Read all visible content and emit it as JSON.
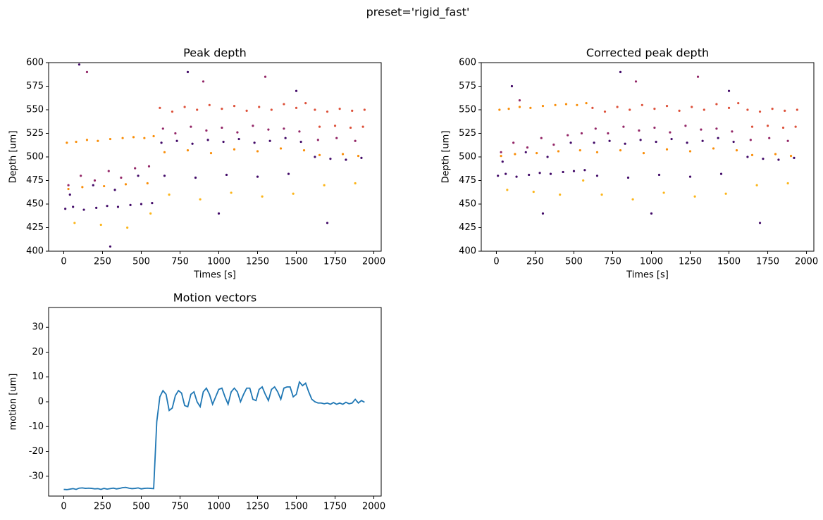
{
  "title": "preset='rigid_fast'",
  "chart_data": [
    {
      "type": "scatter",
      "title": "Peak depth",
      "xlabel": "Times [s]",
      "ylabel": "Depth [um]",
      "xlim": [
        -97.5,
        2047.5
      ],
      "xticks": [
        0,
        250,
        500,
        750,
        1000,
        1250,
        1500,
        1750,
        2000
      ],
      "ylim": [
        400,
        600
      ],
      "yticks": [
        400,
        425,
        450,
        475,
        500,
        525,
        550,
        575,
        600
      ],
      "series": [
        {
          "color": "#420a68",
          "x": [
            10,
            60,
            130,
            210,
            280,
            350,
            430,
            500,
            570,
            40,
            190,
            330,
            480,
            630,
            730,
            830,
            930,
            1030,
            1130,
            1230,
            1330,
            1430,
            1530,
            650,
            850,
            1050,
            1250,
            1450,
            1620,
            1720,
            1820,
            1920,
            300,
            1000,
            1700,
            100,
            800,
            1500
          ],
          "values": [
            445,
            447,
            444,
            446,
            448,
            447,
            449,
            450,
            451,
            460,
            470,
            465,
            480,
            515,
            517,
            514,
            518,
            516,
            519,
            515,
            517,
            520,
            516,
            480,
            478,
            481,
            479,
            482,
            500,
            498,
            497,
            499,
            405,
            440,
            430,
            598,
            590,
            570
          ]
        },
        {
          "color": "#932667",
          "x": [
            30,
            110,
            200,
            290,
            370,
            460,
            550,
            640,
            720,
            820,
            920,
            1020,
            1120,
            1220,
            1320,
            1420,
            1520,
            1640,
            1760,
            1880,
            150,
            900,
            1300
          ],
          "values": [
            470,
            480,
            475,
            485,
            478,
            488,
            490,
            530,
            525,
            532,
            528,
            531,
            526,
            533,
            529,
            530,
            527,
            518,
            520,
            517,
            590,
            580,
            585
          ]
        },
        {
          "color": "#dd513a",
          "x": [
            620,
            700,
            780,
            860,
            940,
            1020,
            1100,
            1180,
            1260,
            1340,
            1420,
            1500,
            1560,
            1620,
            1700,
            1780,
            1860,
            1940,
            1650,
            1750,
            1850,
            1930
          ],
          "values": [
            552,
            548,
            553,
            550,
            555,
            551,
            554,
            549,
            553,
            550,
            556,
            552,
            557,
            550,
            548,
            551,
            549,
            550,
            532,
            533,
            531,
            532
          ]
        },
        {
          "color": "#f98e09",
          "x": [
            20,
            80,
            150,
            220,
            300,
            380,
            450,
            520,
            580,
            30,
            120,
            260,
            400,
            540,
            650,
            800,
            950,
            1100,
            1250,
            1400,
            1550,
            1650,
            1800,
            1900
          ],
          "values": [
            515,
            516,
            518,
            517,
            519,
            520,
            521,
            520,
            522,
            466,
            468,
            469,
            471,
            472,
            505,
            507,
            504,
            508,
            506,
            509,
            507,
            502,
            503,
            501
          ]
        },
        {
          "color": "#fcb519",
          "x": [
            70,
            240,
            410,
            560,
            680,
            880,
            1080,
            1280,
            1480,
            1680,
            1880
          ],
          "values": [
            430,
            428,
            425,
            440,
            460,
            455,
            462,
            458,
            461,
            470,
            472
          ]
        }
      ]
    },
    {
      "type": "scatter",
      "title": "Corrected peak depth",
      "xlabel": "Times [s]",
      "ylabel": "Depth [um]",
      "xlim": [
        -97.5,
        2047.5
      ],
      "xticks": [
        0,
        250,
        500,
        750,
        1000,
        1250,
        1500,
        1750,
        2000
      ],
      "ylim": [
        400,
        600
      ],
      "yticks": [
        400,
        425,
        450,
        475,
        500,
        525,
        550,
        575,
        600
      ],
      "series": [
        {
          "color": "#420a68",
          "x": [
            10,
            60,
            130,
            210,
            280,
            350,
            430,
            500,
            570,
            40,
            190,
            330,
            480,
            630,
            730,
            830,
            930,
            1030,
            1130,
            1230,
            1330,
            1430,
            1530,
            650,
            850,
            1050,
            1250,
            1450,
            1620,
            1720,
            1820,
            1920,
            300,
            1000,
            1700,
            100,
            800,
            1500
          ],
          "values": [
            480,
            482,
            479,
            481,
            483,
            482,
            484,
            485,
            486,
            495,
            505,
            500,
            515,
            515,
            517,
            514,
            518,
            516,
            519,
            515,
            517,
            520,
            516,
            480,
            478,
            481,
            479,
            482,
            500,
            498,
            497,
            499,
            440,
            440,
            430,
            575,
            590,
            570
          ]
        },
        {
          "color": "#932667",
          "x": [
            30,
            110,
            200,
            290,
            370,
            460,
            550,
            640,
            720,
            820,
            920,
            1020,
            1120,
            1220,
            1320,
            1420,
            1520,
            1640,
            1760,
            1880,
            150,
            900,
            1300
          ],
          "values": [
            505,
            515,
            510,
            520,
            513,
            523,
            525,
            530,
            525,
            532,
            528,
            531,
            526,
            533,
            529,
            530,
            527,
            518,
            520,
            517,
            560,
            580,
            585
          ]
        },
        {
          "color": "#dd513a",
          "x": [
            620,
            700,
            780,
            860,
            940,
            1020,
            1100,
            1180,
            1260,
            1340,
            1420,
            1500,
            1560,
            1620,
            1700,
            1780,
            1860,
            1940,
            1650,
            1750,
            1850,
            1930
          ],
          "values": [
            552,
            548,
            553,
            550,
            555,
            551,
            554,
            549,
            553,
            550,
            556,
            552,
            557,
            550,
            548,
            551,
            549,
            550,
            532,
            533,
            531,
            532
          ]
        },
        {
          "color": "#f98e09",
          "x": [
            20,
            80,
            150,
            220,
            300,
            380,
            450,
            520,
            580,
            30,
            120,
            260,
            400,
            540,
            650,
            800,
            950,
            1100,
            1250,
            1400,
            1550,
            1650,
            1800,
            1900
          ],
          "values": [
            550,
            551,
            553,
            552,
            554,
            555,
            556,
            555,
            557,
            501,
            503,
            504,
            506,
            507,
            505,
            507,
            504,
            508,
            506,
            509,
            507,
            502,
            503,
            501
          ]
        },
        {
          "color": "#fcb519",
          "x": [
            70,
            240,
            410,
            560,
            680,
            880,
            1080,
            1280,
            1480,
            1680,
            1880
          ],
          "values": [
            465,
            463,
            460,
            475,
            460,
            455,
            462,
            458,
            461,
            470,
            472
          ]
        }
      ]
    },
    {
      "type": "line",
      "title": "Motion vectors",
      "ylabel": "motion [um]",
      "color": "#1f77b4",
      "xlim": [
        -97.5,
        2047.5
      ],
      "xticks": [
        0,
        250,
        500,
        750,
        1000,
        1250,
        1500,
        1750,
        2000
      ],
      "ylim": [
        -38,
        38
      ],
      "yticks": [
        -30,
        -20,
        -10,
        0,
        10,
        20,
        30
      ],
      "x": [
        0,
        20,
        40,
        60,
        80,
        100,
        120,
        140,
        160,
        180,
        200,
        220,
        240,
        260,
        280,
        300,
        320,
        340,
        360,
        380,
        400,
        420,
        440,
        460,
        480,
        500,
        520,
        540,
        560,
        580,
        600,
        620,
        640,
        660,
        680,
        700,
        720,
        740,
        760,
        780,
        800,
        820,
        840,
        860,
        880,
        900,
        920,
        940,
        960,
        980,
        1000,
        1020,
        1040,
        1060,
        1080,
        1100,
        1120,
        1140,
        1160,
        1180,
        1200,
        1220,
        1240,
        1260,
        1280,
        1300,
        1320,
        1340,
        1360,
        1380,
        1400,
        1420,
        1440,
        1460,
        1480,
        1500,
        1520,
        1540,
        1560,
        1580,
        1600,
        1620,
        1640,
        1660,
        1680,
        1700,
        1720,
        1740,
        1760,
        1780,
        1800,
        1820,
        1840,
        1860,
        1880,
        1900,
        1920,
        1940
      ],
      "values": [
        -35.3,
        -35.4,
        -35.2,
        -35.0,
        -35.3,
        -34.8,
        -34.7,
        -34.9,
        -34.8,
        -34.9,
        -35.1,
        -35.0,
        -35.3,
        -34.9,
        -35.2,
        -35.0,
        -34.8,
        -35.1,
        -34.9,
        -34.6,
        -34.5,
        -34.8,
        -35.0,
        -34.9,
        -34.7,
        -35.1,
        -34.9,
        -34.8,
        -34.9,
        -35.0,
        -8,
        2,
        4.5,
        3,
        -3.5,
        -2.5,
        2.5,
        4.5,
        3.5,
        -1.5,
        -2,
        3,
        4,
        0,
        -2,
        4,
        5.5,
        3,
        -1,
        2,
        5,
        5.5,
        2,
        -1,
        4,
        5.5,
        4,
        0,
        3,
        5.5,
        5.5,
        1,
        0.5,
        5,
        6,
        3,
        0.5,
        5,
        6,
        4,
        1,
        5.5,
        6,
        6,
        2,
        3,
        8,
        6.5,
        7.5,
        4,
        1,
        0,
        -0.5,
        -0.5,
        -0.8,
        -0.5,
        -1,
        -0.3,
        -1,
        -0.5,
        -1,
        -0.2,
        -0.8,
        -0.5,
        1,
        -0.5,
        0.5,
        -0.2
      ]
    }
  ]
}
